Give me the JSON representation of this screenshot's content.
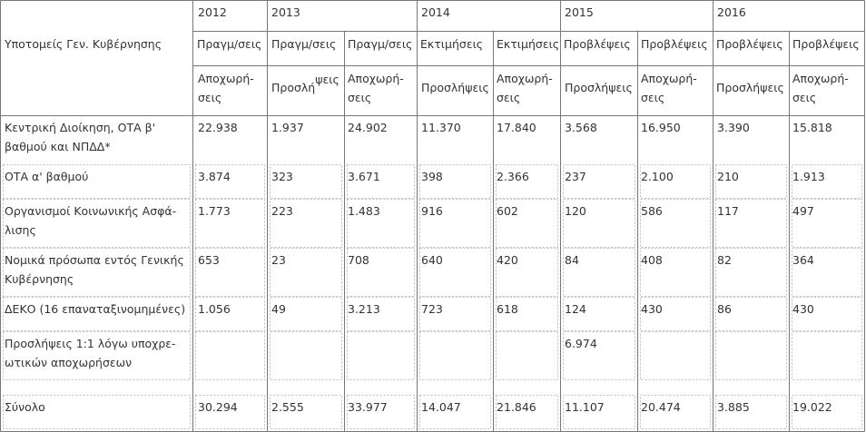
{
  "table": {
    "header_years": [
      "2012",
      "2013",
      "2014",
      "2015",
      "2016"
    ],
    "header_label": "Υποτομείς Γεν. Κυβέρνησης",
    "header_types": [
      "Πραγμ/σεις",
      "Πραγμ/σεις",
      "Πραγμ/σεις",
      "Εκτιμήσεις",
      "Εκτιμήσεις",
      "Προβλέψεις",
      "Προβλέψεις",
      "Προβλέψεις",
      "Προβλέψεις"
    ],
    "header_subs": {
      "c1_line1": "Αποχωρή-",
      "c1_line2": "σεις",
      "c2_main": "Προσλή",
      "c2_sup": "ψεις",
      "c3_line1": "Αποχωρή-",
      "c3_line2": "σεις",
      "c4": "Προσλήψεις",
      "c5_line1": "Αποχωρή-",
      "c5_line2": "σεις",
      "c6": "Προσλήψεις",
      "c7_line1": "Αποχωρή-",
      "c7_line2": "σεις",
      "c8": "Προσλήψεις",
      "c9_line1": "Αποχωρή-",
      "c9_line2": "σεις"
    },
    "rows": [
      {
        "label_line1": "Κεντρική Διοίκηση, ΟΤΑ β'",
        "label_line2": "βαθμού και ΝΠΔΔ*",
        "values": [
          "22.938",
          "1.937",
          "24.902",
          "11.370",
          "17.840",
          "3.568",
          "16.950",
          "3.390",
          "15.818"
        ]
      },
      {
        "label_line1": "ΟΤΑ α' βαθμού",
        "label_line2": "",
        "values": [
          "3.874",
          "323",
          "3.671",
          "398",
          "2.366",
          "237",
          "2.100",
          "210",
          "1.913"
        ]
      },
      {
        "label_line1": "Οργανισμοί Κοινωνικής Ασφά-",
        "label_line2": "λισης",
        "values": [
          "1.773",
          "223",
          "1.483",
          "916",
          "602",
          "120",
          "586",
          "117",
          "497"
        ]
      },
      {
        "label_line1": "Νομικά πρόσωπα εντός Γενικής",
        "label_line2": "Κυβέρνησης",
        "values": [
          "653",
          "23",
          "708",
          "640",
          "420",
          "84",
          "408",
          "82",
          "364"
        ]
      },
      {
        "label_line1": "ΔΕΚΟ (16 επαναταξινομημένες)",
        "label_line2": "",
        "values": [
          "1.056",
          "49",
          "3.213",
          "723",
          "618",
          "124",
          "430",
          "86",
          "430"
        ]
      },
      {
        "label_line1": "Προσλήψεις 1:1 λόγω υποχρε-",
        "label_line2": "ωτικών αποχωρήσεων",
        "values": [
          "",
          "",
          "",
          "",
          "",
          "6.974",
          "",
          "",
          ""
        ]
      },
      {
        "label_line1": "Σύνολο",
        "label_line2": "",
        "values": [
          "30.294",
          "2.555",
          "33.977",
          "14.047",
          "21.846",
          "11.107",
          "20.474",
          "3.885",
          "19.022"
        ]
      }
    ]
  }
}
